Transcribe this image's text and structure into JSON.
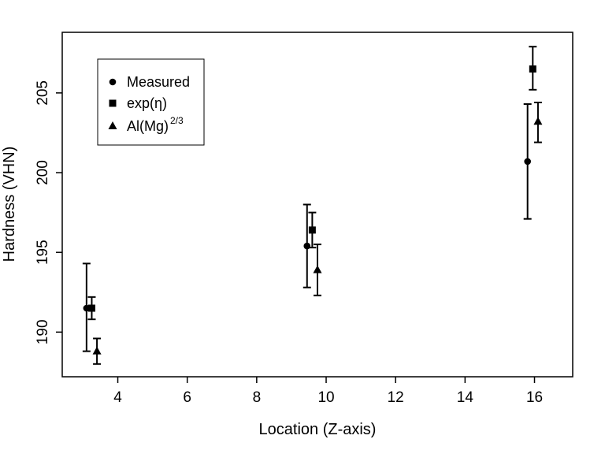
{
  "chart_data": {
    "type": "scatter",
    "title": "",
    "xlabel": "Location (Z-axis)",
    "ylabel": "Hardness (VHN)",
    "xlim": [
      2.4,
      17.1
    ],
    "ylim": [
      187.2,
      208.8
    ],
    "xticks": [
      "4",
      "6",
      "8",
      "10",
      "12",
      "14",
      "16"
    ],
    "yticks": [
      "190",
      "195",
      "200",
      "205"
    ],
    "grid": false,
    "legend_position": "top-left",
    "error_bars": true,
    "series": [
      {
        "name": "Measured",
        "marker": "circle",
        "points": [
          {
            "x": 3.1,
            "y": 191.5,
            "low": 188.8,
            "high": 194.3
          },
          {
            "x": 9.45,
            "y": 195.4,
            "low": 192.8,
            "high": 198.0
          },
          {
            "x": 15.8,
            "y": 200.7,
            "low": 197.1,
            "high": 204.3
          }
        ]
      },
      {
        "name": "exp(η)",
        "marker": "square",
        "points": [
          {
            "x": 3.25,
            "y": 191.5,
            "low": 190.8,
            "high": 192.2
          },
          {
            "x": 9.6,
            "y": 196.4,
            "low": 195.3,
            "high": 197.5
          },
          {
            "x": 15.95,
            "y": 206.5,
            "low": 205.2,
            "high": 207.9
          }
        ]
      },
      {
        "name": "Al(Mg)",
        "name_superscript": "2/3",
        "marker": "triangle",
        "points": [
          {
            "x": 3.4,
            "y": 188.8,
            "low": 188.0,
            "high": 189.6
          },
          {
            "x": 9.75,
            "y": 193.9,
            "low": 192.3,
            "high": 195.5
          },
          {
            "x": 16.1,
            "y": 203.2,
            "low": 201.9,
            "high": 204.4
          }
        ]
      }
    ]
  }
}
